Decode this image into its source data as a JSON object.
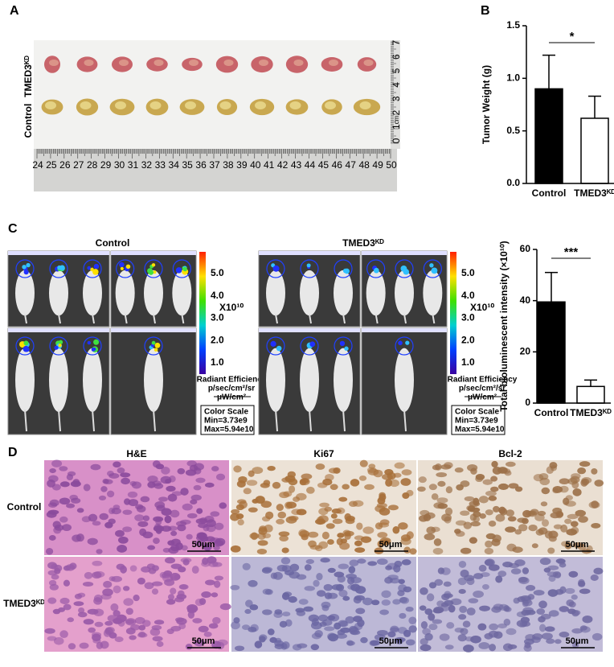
{
  "panel_labels": [
    "A",
    "B",
    "C",
    "D"
  ],
  "panel_a": {
    "ruler_bottom": [
      "24",
      "25",
      "26",
      "27",
      "28",
      "29",
      "30",
      "31",
      "32",
      "33",
      "34",
      "35",
      "36",
      "37",
      "38",
      "39",
      "40",
      "41",
      "42",
      "43",
      "44",
      "45",
      "46",
      "47",
      "48",
      "49",
      "50"
    ],
    "ruler_right": [
      "0",
      "1",
      "2",
      "3",
      "4",
      "5",
      "6",
      "7"
    ],
    "ruler_unit": "cm",
    "row_labels": [
      "Control",
      "TMED3ᴷᴰ"
    ]
  },
  "chart_data": [
    {
      "type": "bar",
      "y_label": "Tumor Weight (g)",
      "categories": [
        "Control",
        "TMED3ᴷᴰ"
      ],
      "values": [
        0.9,
        0.62
      ],
      "errors": [
        0.32,
        0.21
      ],
      "colors": [
        "#000000",
        "#ffffff"
      ],
      "ylim": [
        0,
        1.5
      ],
      "yticks": [
        {
          "value": 0,
          "label": "0.0"
        },
        0.5,
        {
          "value": 1,
          "label": "1.0"
        },
        1.5
      ],
      "significance": "*"
    },
    {
      "type": "bar",
      "y_label": "Total bioluminescent intensity (×10¹⁰)",
      "categories": [
        "Control",
        "TMED3ᴷᴰ"
      ],
      "values": [
        39.5,
        6.5
      ],
      "errors": [
        11.5,
        2.5
      ],
      "colors": [
        "#000000",
        "#ffffff"
      ],
      "ylim": [
        0,
        60
      ],
      "yticks": [
        0,
        20,
        40,
        60
      ],
      "significance": "***"
    }
  ],
  "panel_c_imaging": {
    "groups": [
      {
        "title": "Control",
        "colorbar_ticks": [
          "5.0",
          "4.0",
          "3.0",
          "2.0",
          "1.0"
        ],
        "multiplier": "X10¹⁰",
        "unit_lines": [
          "Radiant Efficiency",
          "p/sec/cm²/sr",
          "μW/cm²"
        ],
        "color_scale": [
          "Color Scale",
          "Min=3.73e9",
          "Max=5.94e10"
        ]
      },
      {
        "title": "TMED3ᴷᴰ",
        "colorbar_ticks": [
          "5.0",
          "4.0",
          "3.0",
          "2.0",
          "1.0"
        ],
        "multiplier": "X10¹⁰",
        "unit_lines": [
          "Radiant Efficiency",
          "p/sec/cm²/sr",
          "μW/cm²"
        ],
        "color_scale": [
          "Color Scale",
          "Min=3.73e9",
          "Max=5.94e10"
        ]
      }
    ]
  },
  "panel_d": {
    "columns": [
      "H&E",
      "Ki67",
      "Bcl-2"
    ],
    "rows": [
      "Control",
      "TMED3ᴷᴰ"
    ],
    "scale_bar": "50μm"
  }
}
